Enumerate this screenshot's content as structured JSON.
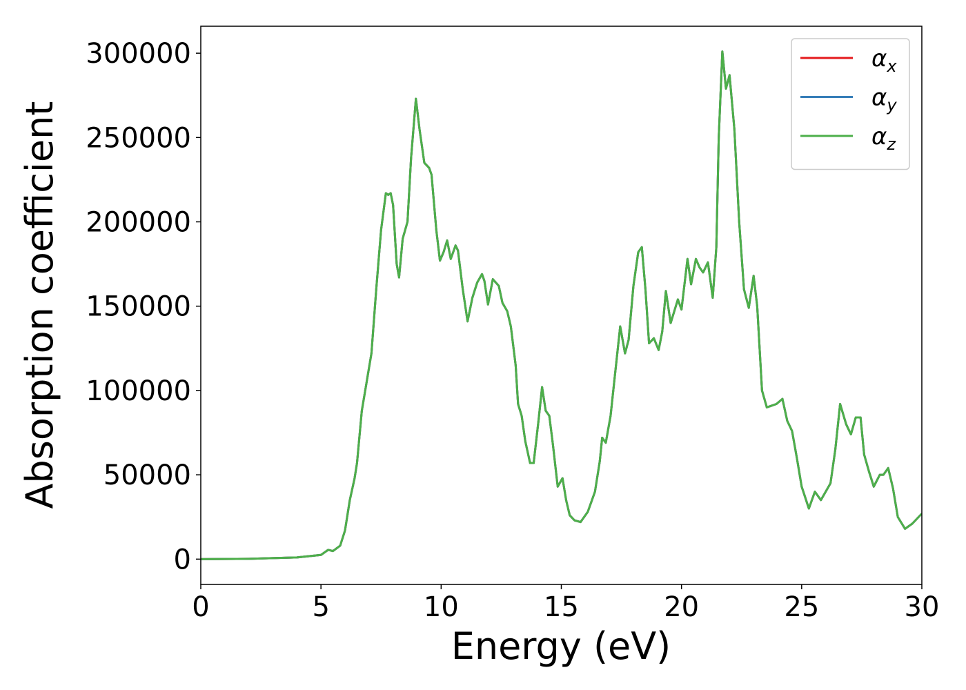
{
  "chart_data": {
    "type": "line",
    "xlabel": "Energy (eV)",
    "ylabel": "Absorption coefficient",
    "x": [
      0,
      2,
      4,
      5,
      5.3,
      5.5,
      5.8,
      6.0,
      6.2,
      6.4,
      6.5,
      6.7,
      6.9,
      7.1,
      7.3,
      7.5,
      7.7,
      7.8,
      7.9,
      8.0,
      8.15,
      8.25,
      8.4,
      8.6,
      8.75,
      8.95,
      9.1,
      9.3,
      9.5,
      9.6,
      9.8,
      9.95,
      10.1,
      10.25,
      10.4,
      10.6,
      10.7,
      10.9,
      11.1,
      11.3,
      11.5,
      11.7,
      11.8,
      11.95,
      12.15,
      12.4,
      12.55,
      12.75,
      12.9,
      13.1,
      13.2,
      13.35,
      13.5,
      13.7,
      13.85,
      14.05,
      14.2,
      14.35,
      14.5,
      14.65,
      14.85,
      15.05,
      15.2,
      15.35,
      15.55,
      15.8,
      16.1,
      16.4,
      16.6,
      16.7,
      16.85,
      17.05,
      17.2,
      17.45,
      17.65,
      17.8,
      18.0,
      18.2,
      18.35,
      18.5,
      18.65,
      18.85,
      19.05,
      19.2,
      19.35,
      19.55,
      19.85,
      20.0,
      20.25,
      20.4,
      20.6,
      20.75,
      20.9,
      21.1,
      21.3,
      21.45,
      21.55,
      21.7,
      21.85,
      22.0,
      22.2,
      22.4,
      22.6,
      22.8,
      23.0,
      23.15,
      23.35,
      23.55,
      23.75,
      23.95,
      24.2,
      24.4,
      24.6,
      24.8,
      25.0,
      25.3,
      25.55,
      25.8,
      26.2,
      26.4,
      26.6,
      26.85,
      27.05,
      27.25,
      27.45,
      27.6,
      27.8,
      28.0,
      28.25,
      28.4,
      28.6,
      28.8,
      29.0,
      29.3,
      29.6,
      30.0
    ],
    "series": [
      {
        "name": "αx",
        "color": "#e41a1c",
        "values": [
          0,
          200,
          1000,
          2500,
          5500,
          4800,
          8000,
          17000,
          35000,
          48000,
          57000,
          88000,
          105000,
          122000,
          160000,
          195000,
          217000,
          216000,
          217000,
          210000,
          175000,
          167000,
          190000,
          200000,
          238000,
          273000,
          255000,
          235000,
          232000,
          228000,
          195000,
          177000,
          182000,
          189000,
          178000,
          186000,
          183000,
          160000,
          141000,
          155000,
          164000,
          169000,
          165000,
          151000,
          166000,
          162000,
          152000,
          147000,
          138000,
          115000,
          92000,
          85000,
          70000,
          57000,
          57000,
          82000,
          102000,
          88000,
          85000,
          68000,
          43000,
          48000,
          35000,
          26000,
          23000,
          22000,
          28000,
          40000,
          58000,
          72000,
          69000,
          85000,
          105000,
          138000,
          122000,
          130000,
          162000,
          182000,
          185000,
          160000,
          128000,
          131000,
          124000,
          135000,
          159000,
          140000,
          154000,
          148000,
          178000,
          163000,
          178000,
          173000,
          170000,
          176000,
          155000,
          185000,
          250000,
          301000,
          279000,
          287000,
          255000,
          200000,
          160000,
          149000,
          168000,
          150000,
          100000,
          90000,
          91000,
          92000,
          95000,
          82000,
          76000,
          60000,
          43000,
          30000,
          40000,
          35000,
          45000,
          65000,
          92000,
          80000,
          74000,
          84000,
          84000,
          62000,
          52000,
          43000,
          50000,
          50000,
          54000,
          42000,
          25000,
          18000,
          21000,
          27000
        ]
      },
      {
        "name": "αy",
        "color": "#377eb8",
        "values": [
          0,
          200,
          1000,
          2500,
          5500,
          4800,
          8000,
          17000,
          35000,
          48000,
          57000,
          88000,
          105000,
          122000,
          160000,
          195000,
          217000,
          216000,
          217000,
          210000,
          175000,
          167000,
          190000,
          200000,
          238000,
          273000,
          255000,
          235000,
          232000,
          228000,
          195000,
          177000,
          182000,
          189000,
          178000,
          186000,
          183000,
          160000,
          141000,
          155000,
          164000,
          169000,
          165000,
          151000,
          166000,
          162000,
          152000,
          147000,
          138000,
          115000,
          92000,
          85000,
          70000,
          57000,
          57000,
          82000,
          102000,
          88000,
          85000,
          68000,
          43000,
          48000,
          35000,
          26000,
          23000,
          22000,
          28000,
          40000,
          58000,
          72000,
          69000,
          85000,
          105000,
          138000,
          122000,
          130000,
          162000,
          182000,
          185000,
          160000,
          128000,
          131000,
          124000,
          135000,
          159000,
          140000,
          154000,
          148000,
          178000,
          163000,
          178000,
          173000,
          170000,
          176000,
          155000,
          185000,
          250000,
          301000,
          279000,
          287000,
          255000,
          200000,
          160000,
          149000,
          168000,
          150000,
          100000,
          90000,
          91000,
          92000,
          95000,
          82000,
          76000,
          60000,
          43000,
          30000,
          40000,
          35000,
          45000,
          65000,
          92000,
          80000,
          74000,
          84000,
          84000,
          62000,
          52000,
          43000,
          50000,
          50000,
          54000,
          42000,
          25000,
          18000,
          21000,
          27000
        ]
      },
      {
        "name": "αz",
        "color": "#4daf4a",
        "values": [
          0,
          200,
          1000,
          2500,
          5500,
          4800,
          8000,
          17000,
          35000,
          48000,
          57000,
          88000,
          105000,
          122000,
          160000,
          195000,
          217000,
          216000,
          217000,
          210000,
          175000,
          167000,
          190000,
          200000,
          238000,
          273000,
          255000,
          235000,
          232000,
          228000,
          195000,
          177000,
          182000,
          189000,
          178000,
          186000,
          183000,
          160000,
          141000,
          155000,
          164000,
          169000,
          165000,
          151000,
          166000,
          162000,
          152000,
          147000,
          138000,
          115000,
          92000,
          85000,
          70000,
          57000,
          57000,
          82000,
          102000,
          88000,
          85000,
          68000,
          43000,
          48000,
          35000,
          26000,
          23000,
          22000,
          28000,
          40000,
          58000,
          72000,
          69000,
          85000,
          105000,
          138000,
          122000,
          130000,
          162000,
          182000,
          185000,
          160000,
          128000,
          131000,
          124000,
          135000,
          159000,
          140000,
          154000,
          148000,
          178000,
          163000,
          178000,
          173000,
          170000,
          176000,
          155000,
          185000,
          250000,
          301000,
          279000,
          287000,
          255000,
          200000,
          160000,
          149000,
          168000,
          150000,
          100000,
          90000,
          91000,
          92000,
          95000,
          82000,
          76000,
          60000,
          43000,
          30000,
          40000,
          35000,
          45000,
          65000,
          92000,
          80000,
          74000,
          84000,
          84000,
          62000,
          52000,
          43000,
          50000,
          50000,
          54000,
          42000,
          25000,
          18000,
          21000,
          27000
        ]
      }
    ],
    "xlim": [
      0,
      30
    ],
    "xticks": [
      0,
      5,
      10,
      15,
      20,
      25,
      30
    ],
    "ylim": [
      -15000,
      316000
    ],
    "yticks": [
      0,
      50000,
      100000,
      150000,
      200000,
      250000,
      300000
    ],
    "grid": false,
    "legend": "upper right"
  }
}
